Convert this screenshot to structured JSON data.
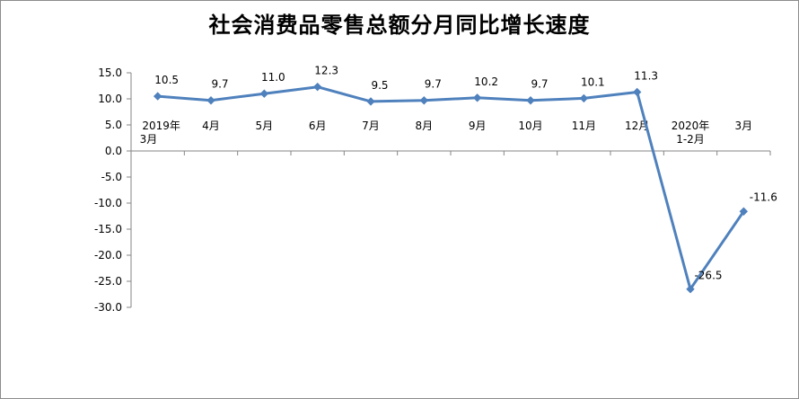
{
  "chart_data": {
    "type": "line",
    "title": "社会消费品零售总额分月同比增长速度",
    "categories": [
      [
        "2019年",
        "3月"
      ],
      [
        "4月"
      ],
      [
        "5月"
      ],
      [
        "6月"
      ],
      [
        "7月"
      ],
      [
        "8月"
      ],
      [
        "9月"
      ],
      [
        "10月"
      ],
      [
        "11月"
      ],
      [
        "12月"
      ],
      [
        "2020年",
        "1-2月"
      ],
      [
        "3月"
      ]
    ],
    "values": [
      10.5,
      9.7,
      11.0,
      12.3,
      9.5,
      9.7,
      10.2,
      9.7,
      10.1,
      11.3,
      -26.5,
      -11.6
    ],
    "data_labels": [
      "10.5",
      "9.7",
      "11.0",
      "12.3",
      "9.5",
      "9.7",
      "10.2",
      "9.7",
      "10.1",
      "11.3",
      "-26.5",
      "-11.6"
    ],
    "ylim": [
      -30,
      15
    ],
    "yticks": [
      15,
      10,
      5,
      0,
      -5,
      -10,
      -15,
      -20,
      -25,
      -30
    ],
    "ytick_labels": [
      "15.0",
      "10.0",
      "5.0",
      "0.0",
      "-5.0",
      "-10.0",
      "-15.0",
      "-20.0",
      "-25.0",
      "-30.0"
    ],
    "grid": false,
    "legend": "none",
    "line_color": "#4f81bd"
  }
}
